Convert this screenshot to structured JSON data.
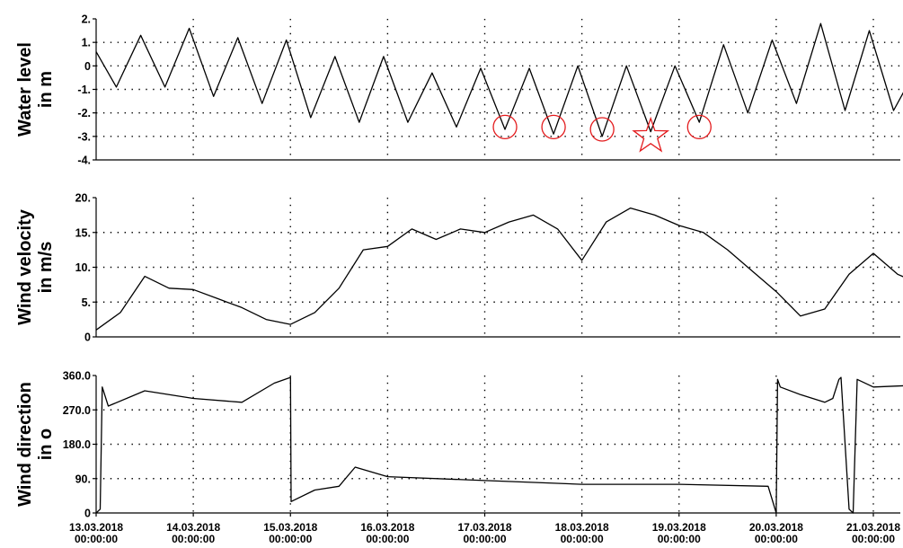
{
  "chart_data": {
    "type": "line",
    "x_axis": {
      "range": [
        "13.03.2018 00:00:00",
        "21.03.2018 00:00:00"
      ],
      "ticks": [
        {
          "date": "13.03.2018",
          "time": "00:00:00"
        },
        {
          "date": "14.03.2018",
          "time": "00:00:00"
        },
        {
          "date": "15.03.2018",
          "time": "00:00:00"
        },
        {
          "date": "16.03.2018",
          "time": "00:00:00"
        },
        {
          "date": "17.03.2018",
          "time": "00:00:00"
        },
        {
          "date": "18.03.2018",
          "time": "00:00:00"
        },
        {
          "date": "19.03.2018",
          "time": "00:00:00"
        },
        {
          "date": "20.03.2018",
          "time": "00:00:00"
        },
        {
          "date": "21.03.2018",
          "time": "00:00:00"
        }
      ]
    },
    "grid": true,
    "panels": [
      {
        "ylabel_lines": [
          "Water level",
          "in m"
        ],
        "ylim": [
          -4,
          2
        ],
        "yticks": [
          {
            "value": 2,
            "label": "2."
          },
          {
            "value": 1,
            "label": "1."
          },
          {
            "value": 0,
            "label": "0"
          },
          {
            "value": -1,
            "label": "-1."
          },
          {
            "value": -2,
            "label": "-2."
          },
          {
            "value": -3,
            "label": "-3."
          },
          {
            "value": -4,
            "label": "-4."
          }
        ],
        "series": {
          "x": [
            "13.03.2018 00:00",
            "13.03.2018 05:00",
            "13.03.2018 11:00",
            "13.03.2018 17:00",
            "13.03.2018 23:00",
            "14.03.2018 05:00",
            "14.03.2018 11:00",
            "14.03.2018 17:00",
            "14.03.2018 23:00",
            "15.03.2018 05:00",
            "15.03.2018 11:00",
            "15.03.2018 17:00",
            "15.03.2018 23:00",
            "16.03.2018 05:00",
            "16.03.2018 11:00",
            "16.03.2018 17:00",
            "16.03.2018 23:00",
            "17.03.2018 05:00",
            "17.03.2018 11:00",
            "17.03.2018 17:00",
            "17.03.2018 23:00",
            "18.03.2018 05:00",
            "18.03.2018 11:00",
            "18.03.2018 17:00",
            "18.03.2018 23:00",
            "19.03.2018 05:00",
            "19.03.2018 11:00",
            "19.03.2018 17:00",
            "19.03.2018 23:00",
            "20.03.2018 05:00",
            "20.03.2018 11:00",
            "20.03.2018 17:00",
            "20.03.2018 23:00",
            "21.03.2018 05:00",
            "21.03.2018 11:00",
            "21.03.2018 15:00"
          ],
          "y": [
            0.6,
            -0.9,
            1.3,
            -0.9,
            1.6,
            -1.3,
            1.2,
            -1.6,
            1.1,
            -2.2,
            0.4,
            -2.4,
            0.4,
            -2.4,
            -0.3,
            -2.6,
            -0.1,
            -2.7,
            -0.1,
            -2.9,
            0.0,
            -3.0,
            0.0,
            -2.8,
            0.0,
            -2.4,
            0.9,
            -2.0,
            1.1,
            -1.6,
            1.8,
            -1.9,
            1.5,
            -1.9,
            0.0,
            0.2
          ]
        },
        "markers": [
          {
            "shape": "circle",
            "x": "17.03.2018 05:00",
            "y": -2.6
          },
          {
            "shape": "circle",
            "x": "17.03.2018 17:00",
            "y": -2.6
          },
          {
            "shape": "circle",
            "x": "18.03.2018 05:00",
            "y": -2.7
          },
          {
            "shape": "star",
            "x": "18.03.2018 17:00",
            "y": -3.0
          },
          {
            "shape": "circle",
            "x": "19.03.2018 05:00",
            "y": -2.6
          }
        ],
        "marker_color": "#e31a1c"
      },
      {
        "ylabel_lines": [
          "Wind velocity",
          "in m/s"
        ],
        "ylim": [
          0,
          20
        ],
        "yticks": [
          {
            "value": 20,
            "label": "20."
          },
          {
            "value": 15,
            "label": "15."
          },
          {
            "value": 10,
            "label": "10."
          },
          {
            "value": 5,
            "label": "5."
          },
          {
            "value": 0,
            "label": "0"
          }
        ],
        "series": {
          "x": [
            "13.03.2018 00:00",
            "13.03.2018 06:00",
            "13.03.2018 12:00",
            "13.03.2018 18:00",
            "14.03.2018 00:00",
            "14.03.2018 06:00",
            "14.03.2018 12:00",
            "14.03.2018 18:00",
            "15.03.2018 00:00",
            "15.03.2018 06:00",
            "15.03.2018 12:00",
            "15.03.2018 18:00",
            "16.03.2018 00:00",
            "16.03.2018 06:00",
            "16.03.2018 12:00",
            "16.03.2018 18:00",
            "17.03.2018 00:00",
            "17.03.2018 06:00",
            "17.03.2018 12:00",
            "17.03.2018 18:00",
            "18.03.2018 00:00",
            "18.03.2018 06:00",
            "18.03.2018 12:00",
            "18.03.2018 18:00",
            "19.03.2018 00:00",
            "19.03.2018 06:00",
            "19.03.2018 12:00",
            "19.03.2018 18:00",
            "20.03.2018 00:00",
            "20.03.2018 06:00",
            "20.03.2018 12:00",
            "20.03.2018 18:00",
            "21.03.2018 00:00",
            "21.03.2018 06:00",
            "21.03.2018 12:00",
            "21.03.2018 15:00"
          ],
          "y": [
            1.0,
            3.5,
            8.7,
            7.0,
            6.8,
            5.5,
            4.2,
            2.5,
            1.8,
            3.5,
            7.0,
            12.5,
            13.0,
            15.5,
            14.0,
            15.5,
            15.0,
            16.5,
            17.5,
            15.5,
            11.0,
            16.5,
            18.5,
            17.5,
            16.0,
            15.0,
            12.5,
            9.5,
            6.5,
            3.0,
            4.0,
            9.0,
            12.0,
            9.0,
            7.5,
            6.0
          ]
        }
      },
      {
        "ylabel_lines": [
          "Wind direction",
          "in o"
        ],
        "ylim": [
          0,
          360
        ],
        "yticks": [
          {
            "value": 360,
            "label": "360.0"
          },
          {
            "value": 270,
            "label": "270.0"
          },
          {
            "value": 180,
            "label": "180.0"
          },
          {
            "value": 90,
            "label": "90."
          },
          {
            "value": 0,
            "label": "0"
          }
        ],
        "series": {
          "x": [
            "13.03.2018 00:00",
            "13.03.2018 01:00",
            "13.03.2018 01:30",
            "13.03.2018 03:00",
            "13.03.2018 12:00",
            "14.03.2018 00:00",
            "14.03.2018 12:00",
            "14.03.2018 20:00",
            "15.03.2018 00:00",
            "15.03.2018 00:10",
            "15.03.2018 06:00",
            "15.03.2018 12:00",
            "15.03.2018 16:00",
            "16.03.2018 00:00",
            "17.03.2018 00:00",
            "18.03.2018 00:00",
            "19.03.2018 00:00",
            "19.03.2018 22:00",
            "20.03.2018 00:00",
            "20.03.2018 00:20",
            "20.03.2018 01:00",
            "20.03.2018 06:00",
            "20.03.2018 12:00",
            "20.03.2018 14:00",
            "20.03.2018 15:30",
            "20.03.2018 16:00",
            "20.03.2018 18:00",
            "20.03.2018 19:00",
            "20.03.2018 20:00",
            "21.03.2018 00:00",
            "21.03.2018 12:00",
            "21.03.2018 15:00"
          ],
          "y": [
            0,
            10,
            330,
            280,
            320,
            300,
            290,
            340,
            355,
            30,
            60,
            70,
            120,
            95,
            85,
            75,
            75,
            70,
            0,
            350,
            330,
            310,
            290,
            300,
            350,
            355,
            10,
            0,
            350,
            330,
            335,
            330
          ]
        }
      }
    ]
  }
}
